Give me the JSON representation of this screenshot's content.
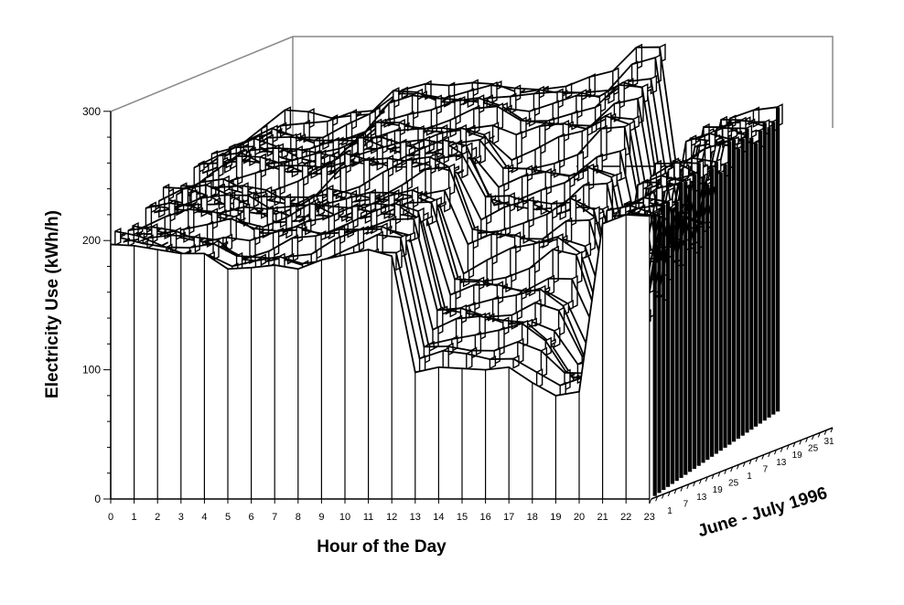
{
  "chart_data": {
    "type": "3d-surface",
    "xlabel": "Hour of the Day",
    "ylabel": "Electricity Use (kWh/h)",
    "zlabel": "June - July 1996",
    "x_ticks": [
      "0",
      "1",
      "2",
      "3",
      "4",
      "5",
      "6",
      "7",
      "8",
      "9",
      "10",
      "11",
      "12",
      "13",
      "14",
      "15",
      "16",
      "17",
      "18",
      "19",
      "20",
      "21",
      "22",
      "23"
    ],
    "y_ticks": [
      "0",
      "100",
      "200",
      "300"
    ],
    "ylim": [
      0,
      300
    ],
    "date_ticks": [
      "1",
      "7",
      "13",
      "19",
      "25",
      "1",
      "7",
      "13",
      "19",
      "25",
      "31"
    ],
    "series_count": 30,
    "front_profile": {
      "name": "",
      "x": [
        0,
        1,
        2,
        3,
        4,
        5,
        6,
        7,
        8,
        9,
        10,
        11,
        12,
        13,
        14,
        15,
        16,
        17,
        18,
        19,
        20,
        21,
        22,
        23
      ],
      "values": [
        197,
        196,
        193,
        190,
        190,
        178,
        179,
        181,
        178,
        185,
        189,
        193,
        188,
        98,
        102,
        101,
        100,
        102,
        90,
        80,
        83,
        213,
        220,
        219
      ]
    },
    "back_profile": {
      "name": "",
      "x": [
        0,
        1,
        2,
        3,
        4,
        5,
        6,
        7,
        8,
        9,
        10,
        11,
        12,
        13,
        14,
        15,
        16,
        17,
        18,
        19,
        20,
        21,
        22,
        23
      ],
      "values": [
        208,
        218,
        228,
        225,
        222,
        228,
        232,
        250,
        252,
        248,
        250,
        252,
        250,
        256,
        258,
        262,
        263,
        280,
        282,
        155,
        150,
        230,
        232,
        230
      ]
    },
    "colors": {
      "fill": "#ffffff",
      "line": "#000000",
      "frame": "#888888"
    }
  }
}
